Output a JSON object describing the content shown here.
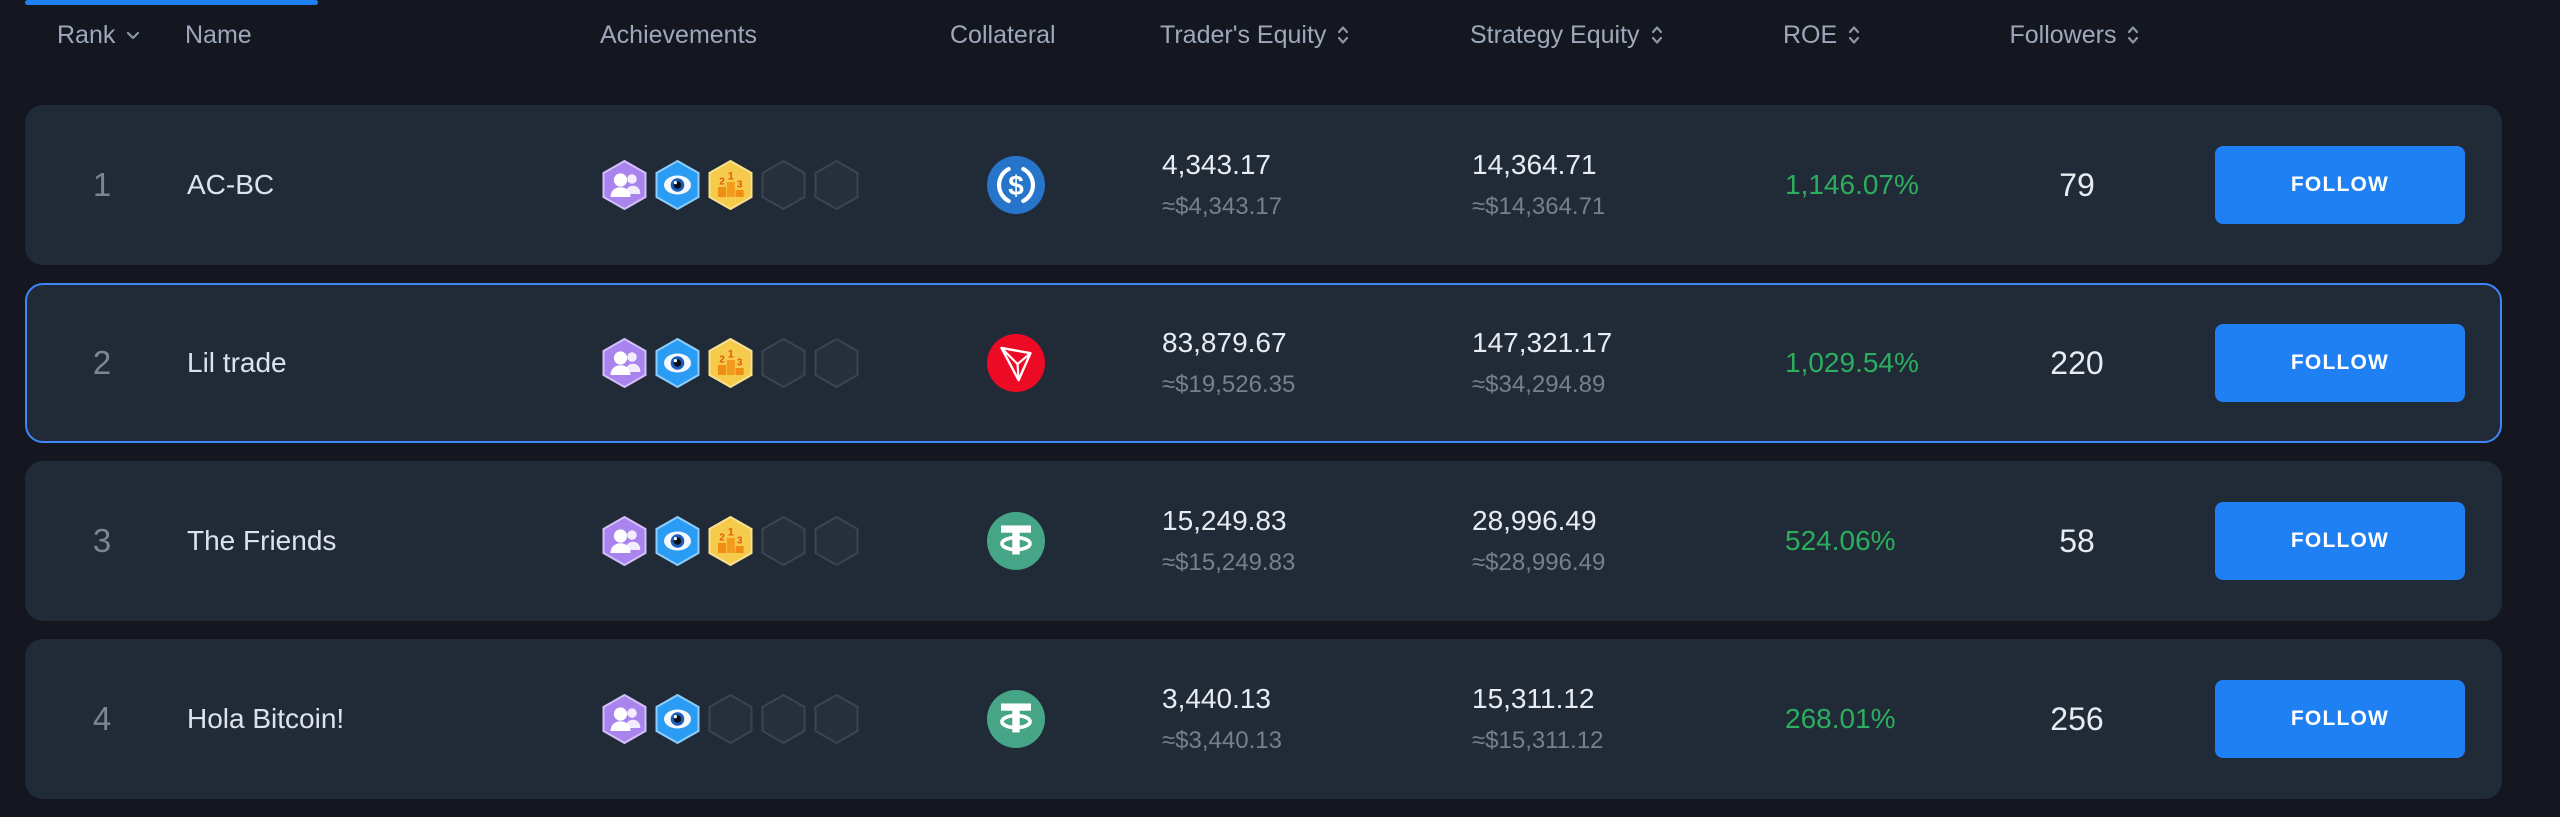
{
  "page": {
    "background": "#141720"
  },
  "colors": {
    "follow_button": "#1f80f4",
    "roe_positive": "#2bae5e",
    "selected_row_border": "#3f86f6",
    "usdc": "#2775ca",
    "trx": "#ec0a25",
    "usdt": "#45a586"
  },
  "header": {
    "rank": "Rank",
    "name": "Name",
    "achievements": "Achievements",
    "collateral": "Collateral",
    "traders_equity": "Trader's Equity",
    "strategy_equity": "Strategy Equity",
    "roe": "ROE",
    "followers": "Followers"
  },
  "rows": [
    {
      "rank": "1",
      "name": "AC-BC",
      "badges": [
        "people",
        "eye",
        "podium",
        "empty",
        "empty"
      ],
      "collateral_coin": "USDC",
      "trader_equity": "4,343.17",
      "trader_equity_usd": "≈$4,343.17",
      "strategy_equity": "14,364.71",
      "strategy_equity_usd": "≈$14,364.71",
      "roe": "1,146.07%",
      "followers": "79",
      "action_label": "FOLLOW",
      "selected": false
    },
    {
      "rank": "2",
      "name": "Lil trade",
      "badges": [
        "people",
        "eye",
        "podium",
        "empty",
        "empty"
      ],
      "collateral_coin": "TRX",
      "trader_equity": "83,879.67",
      "trader_equity_usd": "≈$19,526.35",
      "strategy_equity": "147,321.17",
      "strategy_equity_usd": "≈$34,294.89",
      "roe": "1,029.54%",
      "followers": "220",
      "action_label": "FOLLOW",
      "selected": true
    },
    {
      "rank": "3",
      "name": "The Friends",
      "badges": [
        "people",
        "eye",
        "podium",
        "empty",
        "empty"
      ],
      "collateral_coin": "USDT",
      "trader_equity": "15,249.83",
      "trader_equity_usd": "≈$15,249.83",
      "strategy_equity": "28,996.49",
      "strategy_equity_usd": "≈$28,996.49",
      "roe": "524.06%",
      "followers": "58",
      "action_label": "FOLLOW",
      "selected": false
    },
    {
      "rank": "4",
      "name": "Hola Bitcoin!",
      "badges": [
        "people",
        "eye",
        "empty",
        "empty",
        "empty"
      ],
      "collateral_coin": "USDT",
      "trader_equity": "3,440.13",
      "trader_equity_usd": "≈$3,440.13",
      "strategy_equity": "15,311.12",
      "strategy_equity_usd": "≈$15,311.12",
      "roe": "268.01%",
      "followers": "256",
      "action_label": "FOLLOW",
      "selected": false
    }
  ]
}
